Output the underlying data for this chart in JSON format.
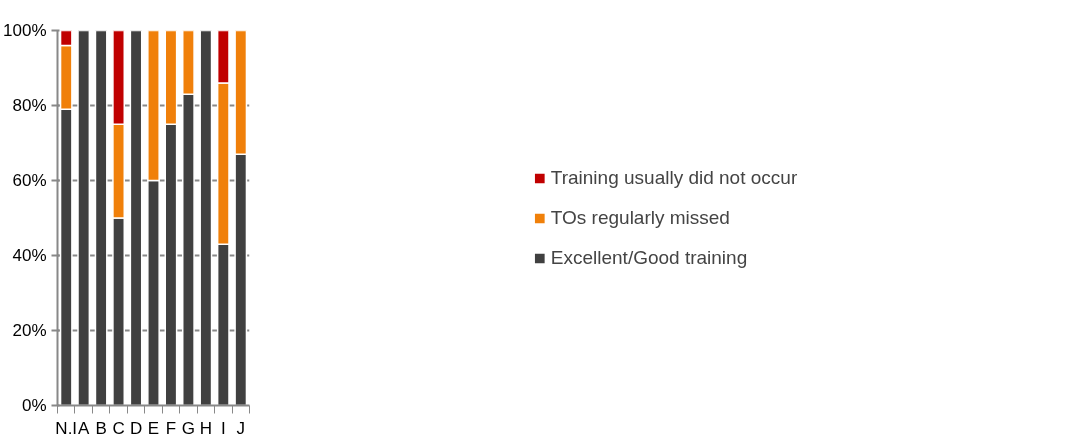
{
  "chart_data": {
    "type": "bar",
    "stacked": true,
    "categories": [
      "N.I",
      "A",
      "B",
      "C",
      "D",
      "E",
      "F",
      "G",
      "H",
      "I",
      "J"
    ],
    "series": [
      {
        "name": "Excellent/Good training",
        "color": "#404040",
        "values": [
          79,
          100,
          100,
          50,
          100,
          60,
          75,
          83,
          100,
          43,
          67
        ]
      },
      {
        "name": "TOs regularly missed",
        "color": "#f0800a",
        "values": [
          17,
          null,
          null,
          25,
          null,
          40,
          25,
          17,
          null,
          43,
          33
        ]
      },
      {
        "name": "Training usually did not occur",
        "color": "#c00000",
        "values": [
          4,
          null,
          null,
          25,
          null,
          null,
          null,
          null,
          null,
          14,
          null
        ]
      }
    ],
    "ylim": [
      0,
      100
    ],
    "yticks": [
      {
        "value": 0,
        "label": "0%"
      },
      {
        "value": 20,
        "label": "20%"
      },
      {
        "value": 40,
        "label": "40%"
      },
      {
        "value": 60,
        "label": "60%"
      },
      {
        "value": 80,
        "label": "80%"
      },
      {
        "value": 100,
        "label": "100%"
      }
    ],
    "grid": "y",
    "legend": "right"
  }
}
